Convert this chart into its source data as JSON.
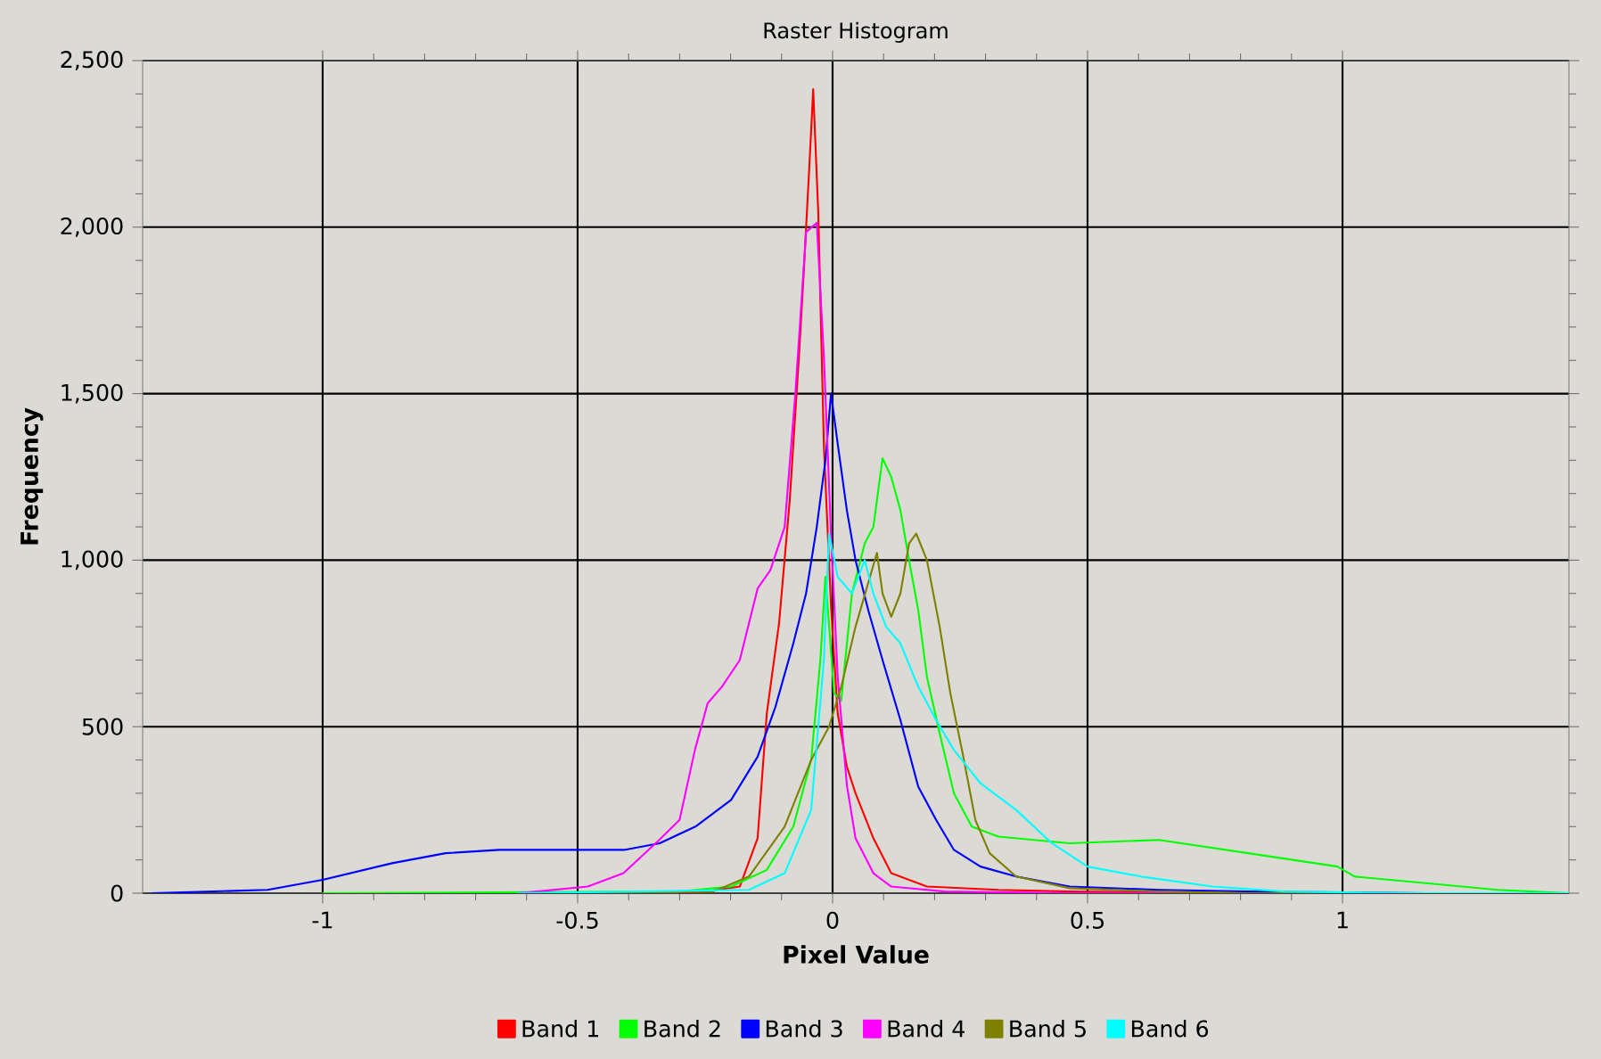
{
  "chart_data": {
    "type": "line",
    "title": "Raster Histogram",
    "xlabel": "Pixel Value",
    "ylabel": "Frequency",
    "xlim": [
      -1.353,
      1.444
    ],
    "ylim": [
      0,
      2500
    ],
    "xticks": [
      -1,
      -0.5,
      0,
      0.5,
      1
    ],
    "yticks": [
      {
        "value": 0,
        "label": "0"
      },
      {
        "value": 500,
        "label": "500"
      },
      {
        "value": 1000,
        "label": "1,000"
      },
      {
        "value": 1500,
        "label": "1,500"
      },
      {
        "value": 2000,
        "label": "2,000"
      },
      {
        "value": 2500,
        "label": "2,500"
      }
    ],
    "grid": true,
    "legend": "bottom",
    "series": [
      {
        "name": "Band 1",
        "color": "#ff0000",
        "x": [
          -0.35,
          -0.25,
          -0.182,
          -0.147,
          -0.129,
          -0.105,
          -0.084,
          -0.066,
          -0.056,
          -0.045,
          -0.038,
          -0.028,
          -0.017,
          -0.003,
          0.01,
          0.028,
          0.045,
          0.08,
          0.115,
          0.185,
          0.325,
          0.465,
          0.8,
          1.2
        ],
        "values": [
          0,
          5,
          20,
          165,
          540,
          810,
          1180,
          1610,
          1880,
          2200,
          2414,
          2040,
          1340,
          860,
          540,
          380,
          300,
          165,
          60,
          20,
          10,
          5,
          0,
          0
        ]
      },
      {
        "name": "Band 2",
        "color": "#00ff00",
        "x": [
          -1.0,
          -0.304,
          -0.199,
          -0.129,
          -0.077,
          -0.042,
          -0.024,
          -0.014,
          0.003,
          0.017,
          0.038,
          0.063,
          0.08,
          0.098,
          0.115,
          0.133,
          0.15,
          0.168,
          0.185,
          0.21,
          0.238,
          0.273,
          0.325,
          0.465,
          0.64,
          0.815,
          0.99,
          1.024,
          1.164,
          1.304,
          1.444
        ],
        "values": [
          0,
          5,
          20,
          70,
          200,
          400,
          700,
          950,
          600,
          578,
          900,
          1050,
          1100,
          1306,
          1250,
          1150,
          1000,
          850,
          650,
          480,
          300,
          200,
          170,
          150,
          160,
          120,
          80,
          50,
          30,
          10,
          0
        ]
      },
      {
        "name": "Band 3",
        "color": "#0000ff",
        "x": [
          -1.336,
          -1.108,
          -1.0,
          -0.864,
          -0.759,
          -0.654,
          -0.514,
          -0.409,
          -0.339,
          -0.269,
          -0.199,
          -0.147,
          -0.112,
          -0.077,
          -0.052,
          -0.031,
          -0.014,
          -0.003,
          0.01,
          0.028,
          0.045,
          0.07,
          0.098,
          0.133,
          0.168,
          0.203,
          0.238,
          0.29,
          0.36,
          0.465,
          0.64,
          0.815,
          1.164,
          1.444
        ],
        "values": [
          0,
          10,
          40,
          90,
          120,
          130,
          130,
          130,
          150,
          200,
          280,
          410,
          560,
          750,
          900,
          1100,
          1300,
          1500,
          1350,
          1150,
          1000,
          850,
          700,
          520,
          320,
          220,
          130,
          80,
          50,
          20,
          10,
          5,
          0,
          0
        ]
      },
      {
        "name": "Band 4",
        "color": "#ff00ff",
        "x": [
          -0.62,
          -0.58,
          -0.48,
          -0.41,
          -0.34,
          -0.3,
          -0.27,
          -0.245,
          -0.217,
          -0.182,
          -0.147,
          -0.122,
          -0.094,
          -0.073,
          -0.052,
          -0.031,
          -0.017,
          -0.003,
          0.01,
          0.028,
          0.045,
          0.08,
          0.115,
          0.22,
          0.465,
          1.2
        ],
        "values": [
          0,
          5,
          20,
          60,
          160,
          220,
          430,
          570,
          620,
          700,
          915,
          970,
          1100,
          1500,
          1985,
          2013,
          1610,
          1075,
          650,
          325,
          165,
          60,
          20,
          5,
          0,
          0
        ]
      },
      {
        "name": "Band 5",
        "color": "#808000",
        "x": [
          -0.62,
          -0.234,
          -0.164,
          -0.094,
          -0.042,
          -0.007,
          0.017,
          0.045,
          0.087,
          0.098,
          0.115,
          0.133,
          0.15,
          0.164,
          0.185,
          0.21,
          0.231,
          0.255,
          0.28,
          0.308,
          0.36,
          0.465,
          0.64,
          0.815,
          1.444
        ],
        "values": [
          0,
          5,
          50,
          200,
          400,
          500,
          620,
          800,
          1022,
          900,
          830,
          900,
          1050,
          1080,
          1000,
          800,
          600,
          420,
          220,
          120,
          50,
          15,
          5,
          0,
          0
        ]
      },
      {
        "name": "Band 6",
        "color": "#00ffff",
        "x": [
          -0.62,
          -0.164,
          -0.094,
          -0.042,
          -0.017,
          -0.007,
          0.01,
          0.038,
          0.063,
          0.08,
          0.105,
          0.133,
          0.168,
          0.203,
          0.238,
          0.29,
          0.36,
          0.43,
          0.5,
          0.605,
          0.745,
          0.885,
          1.13,
          1.444
        ],
        "values": [
          0,
          10,
          60,
          250,
          700,
          1080,
          950,
          900,
          1000,
          900,
          800,
          750,
          620,
          520,
          430,
          330,
          250,
          150,
          80,
          50,
          20,
          5,
          0,
          0
        ]
      }
    ]
  }
}
